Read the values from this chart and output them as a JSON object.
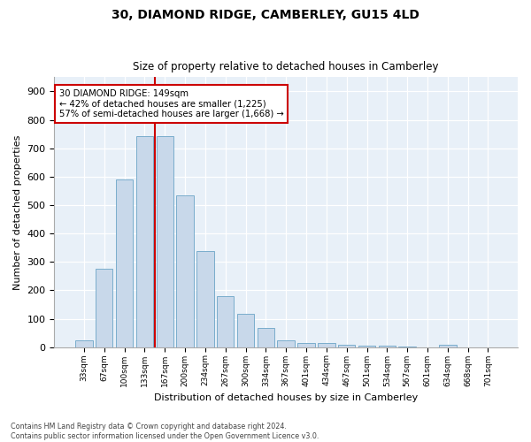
{
  "title1": "30, DIAMOND RIDGE, CAMBERLEY, GU15 4LD",
  "title2": "Size of property relative to detached houses in Camberley",
  "xlabel": "Distribution of detached houses by size in Camberley",
  "ylabel": "Number of detached properties",
  "categories": [
    "33sqm",
    "67sqm",
    "100sqm",
    "133sqm",
    "167sqm",
    "200sqm",
    "234sqm",
    "267sqm",
    "300sqm",
    "334sqm",
    "367sqm",
    "401sqm",
    "434sqm",
    "467sqm",
    "501sqm",
    "534sqm",
    "567sqm",
    "601sqm",
    "634sqm",
    "668sqm",
    "701sqm"
  ],
  "values": [
    25,
    275,
    590,
    742,
    742,
    535,
    338,
    178,
    118,
    68,
    25,
    15,
    15,
    8,
    5,
    5,
    3,
    0,
    8,
    0,
    0
  ],
  "bar_color": "#c8d8ea",
  "bar_edge_color": "#7aadcc",
  "vline_x": 3.5,
  "vline_color": "#cc0000",
  "annotation_text": "30 DIAMOND RIDGE: 149sqm\n← 42% of detached houses are smaller (1,225)\n57% of semi-detached houses are larger (1,668) →",
  "annotation_box_color": "#ffffff",
  "annotation_box_edge": "#cc0000",
  "footnote": "Contains HM Land Registry data © Crown copyright and database right 2024.\nContains public sector information licensed under the Open Government Licence v3.0.",
  "fig_bg_color": "#ffffff",
  "plot_bg_color": "#e8f0f8",
  "ylim": [
    0,
    950
  ],
  "yticks": [
    0,
    100,
    200,
    300,
    400,
    500,
    600,
    700,
    800,
    900
  ]
}
